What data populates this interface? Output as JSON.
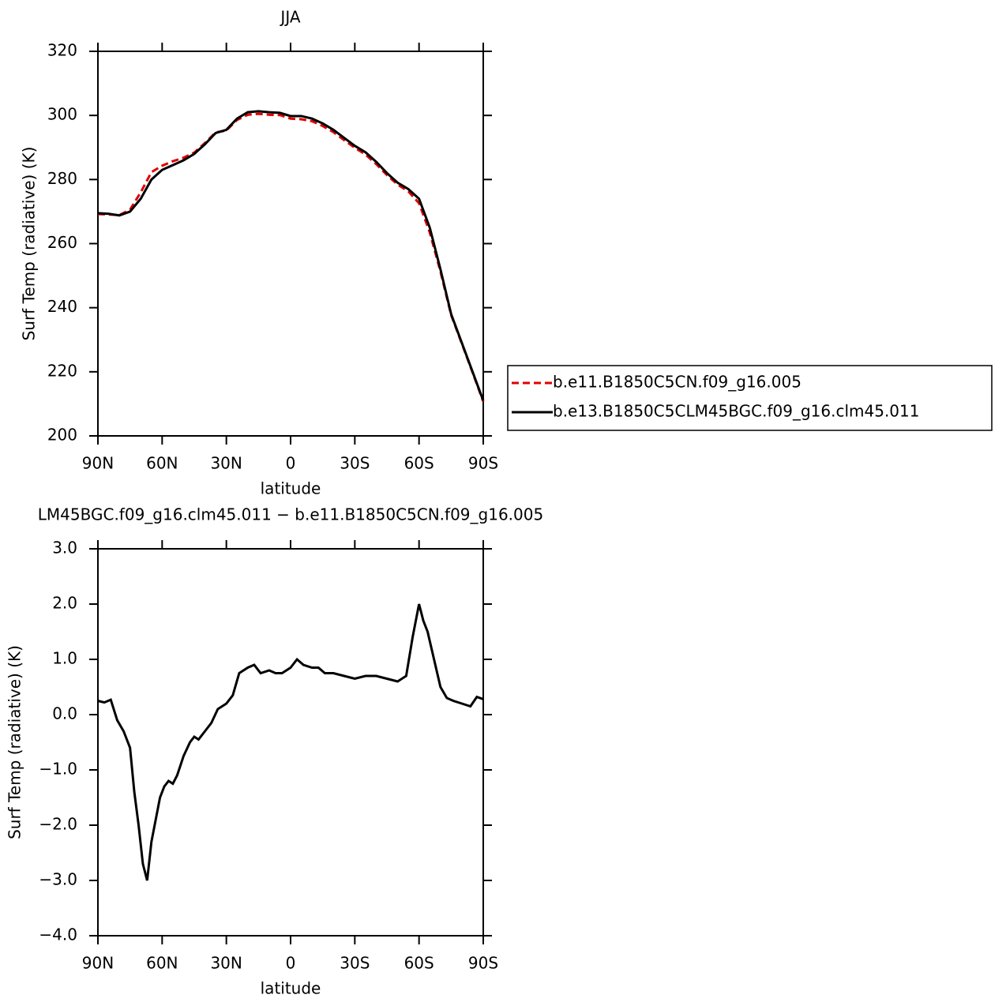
{
  "chart_data": [
    {
      "type": "line",
      "title": "JJA",
      "x_label": "latitude",
      "y_label": "Surf Temp (radiative) (K)",
      "x": [
        90,
        85,
        80,
        75,
        70,
        65,
        60,
        55,
        50,
        45,
        40,
        35,
        30,
        25,
        20,
        15,
        10,
        5,
        0,
        -5,
        -10,
        -15,
        -20,
        -25,
        -30,
        -35,
        -40,
        -45,
        -50,
        -55,
        -60,
        -65,
        -70,
        -75,
        -80,
        -85,
        -90
      ],
      "series": [
        {
          "name": "b.e11.B1850C5CN.f09_g16.005",
          "color": "#e00000",
          "dash": true,
          "values": [
            269.2,
            269.1,
            268.9,
            270.6,
            276,
            282.3,
            284.3,
            285.7,
            286.8,
            288.4,
            291.4,
            294.7,
            295.3,
            298.6,
            300.2,
            300.5,
            300.2,
            300.1,
            299,
            298.8,
            298.2,
            296.7,
            294.8,
            292.3,
            289.9,
            287.8,
            284.8,
            281.4,
            278.4,
            276.3,
            272.6,
            263.5,
            251.3,
            237.7,
            228.8,
            219.8,
            210.7
          ]
        },
        {
          "name": "b.e13.B1850C5CLM45BGC.f09_g16.clm45.011",
          "color": "#000000",
          "dash": false,
          "values": [
            269.5,
            269.3,
            268.8,
            270,
            274,
            280,
            283,
            284.5,
            286,
            288,
            291,
            294.5,
            295.5,
            299,
            301,
            301.3,
            301,
            300.8,
            299.8,
            299.8,
            299,
            297.5,
            295.5,
            293,
            290.5,
            288.5,
            285.5,
            282,
            279,
            277,
            274,
            265,
            252,
            238,
            229,
            220,
            211
          ]
        }
      ],
      "xlim": [
        90,
        -90
      ],
      "xticks": [
        {
          "value": 90,
          "label": "90N"
        },
        {
          "value": 60,
          "label": "60N"
        },
        {
          "value": 30,
          "label": "30N"
        },
        0,
        {
          "value": -30,
          "label": "30S"
        },
        {
          "value": -60,
          "label": "60S"
        },
        {
          "value": -90,
          "label": "90S"
        }
      ],
      "ylim": [
        200,
        320
      ],
      "yticks": [
        200,
        220,
        240,
        260,
        280,
        300,
        320
      ],
      "legend": "right"
    },
    {
      "type": "line",
      "title": "LM45BGC.f09_g16.clm45.011 − b.e11.B1850C5CN.f09_g16.005",
      "x_label": "latitude",
      "y_label": "Surf Temp (radiative) (K)",
      "x": [
        90,
        87,
        84,
        81,
        78,
        75,
        73,
        71,
        69,
        67,
        65,
        63,
        61,
        59,
        57,
        55,
        53,
        50,
        47,
        45,
        43,
        40,
        37,
        34,
        30,
        27,
        24,
        20,
        17,
        14,
        10,
        7,
        4,
        0,
        -3,
        -6,
        -10,
        -13,
        -16,
        -20,
        -25,
        -30,
        -35,
        -40,
        -45,
        -50,
        -54,
        -57,
        -60,
        -62,
        -64,
        -67,
        -70,
        -73,
        -76,
        -80,
        -84,
        -87,
        -90
      ],
      "series": [
        {
          "name": null,
          "color": "#000000",
          "dash": false,
          "values": [
            0.25,
            0.22,
            0.27,
            -0.1,
            -0.3,
            -0.6,
            -1.4,
            -2.0,
            -2.7,
            -3.0,
            -2.3,
            -1.9,
            -1.5,
            -1.3,
            -1.2,
            -1.25,
            -1.1,
            -0.75,
            -0.5,
            -0.4,
            -0.45,
            -0.3,
            -0.15,
            0.1,
            0.2,
            0.35,
            0.75,
            0.85,
            0.9,
            0.75,
            0.8,
            0.75,
            0.75,
            0.85,
            1.0,
            0.9,
            0.85,
            0.85,
            0.75,
            0.75,
            0.7,
            0.65,
            0.7,
            0.7,
            0.65,
            0.6,
            0.7,
            1.4,
            2.0,
            1.7,
            1.5,
            1.0,
            0.5,
            0.3,
            0.25,
            0.2,
            0.15,
            0.32,
            0.28
          ]
        }
      ],
      "xlim": [
        90,
        -90
      ],
      "xticks": [
        {
          "value": 90,
          "label": "90N"
        },
        {
          "value": 60,
          "label": "60N"
        },
        {
          "value": 30,
          "label": "30N"
        },
        0,
        {
          "value": -30,
          "label": "30S"
        },
        {
          "value": -60,
          "label": "60S"
        },
        {
          "value": -90,
          "label": "90S"
        }
      ],
      "ylim": [
        -4,
        3
      ],
      "yticks": [
        {
          "value": -4,
          "label": "−4.0"
        },
        {
          "value": -3,
          "label": "−3.0"
        },
        {
          "value": -2,
          "label": "−2.0"
        },
        {
          "value": -1,
          "label": "−1.0"
        },
        {
          "value": 0,
          "label": "0.0"
        },
        {
          "value": 1,
          "label": "1.0"
        },
        {
          "value": 2,
          "label": "2.0"
        },
        {
          "value": 3,
          "label": "3.0"
        }
      ]
    }
  ]
}
